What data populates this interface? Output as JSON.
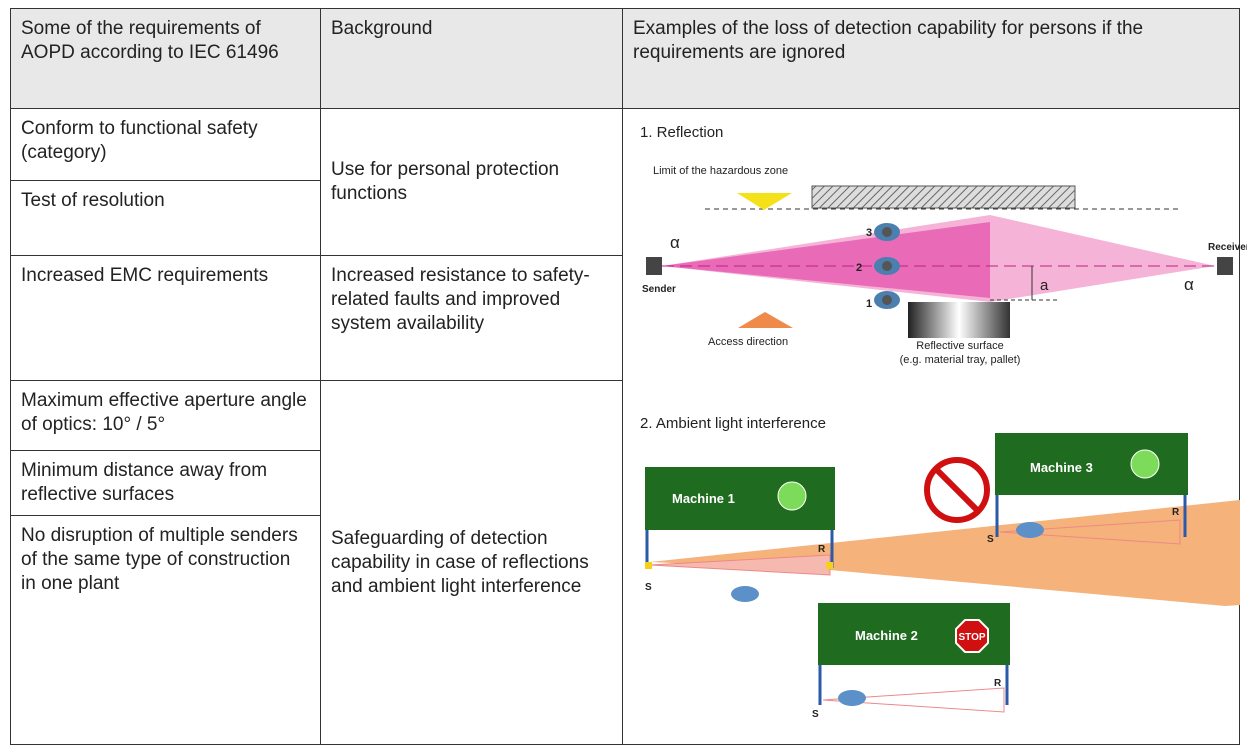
{
  "header": [
    "Some of the requirements of AOPD according to IEC 61496",
    "Background",
    "Examples of the loss of detection capability for persons if the requirements are ignored"
  ],
  "requirements": [
    "Conform to functional safety (category)",
    "Test of resolution",
    "Increased EMC requirements",
    "Maximum effective aperture angle of optics: 10° / 5°",
    "Minimum distance away from reflective surfaces",
    "No disruption of multiple senders of the same type of construction in one plant"
  ],
  "backgrounds": [
    "Use for personal protection functions",
    "Increased resistance to safety-related faults and improved system availability",
    "Safeguarding of detection capability in case of reflections and ambient light interference"
  ],
  "reflection": {
    "title": "1. Reflection",
    "limit": "Limit of the hazardous zone",
    "angle": "α",
    "receiver": "Receiver",
    "sender": "Sender",
    "persons": [
      "1",
      "2",
      "3"
    ],
    "distance": "a",
    "access": "Access direction",
    "surface": "Reflective surface",
    "surface_note": "(e.g. material tray, pallet)"
  },
  "ambient": {
    "title": "2. Ambient light interference",
    "machines": [
      "Machine 1",
      "Machine 2",
      "Machine 3"
    ],
    "sender": "S",
    "receiver": "R",
    "stop": "STOP"
  }
}
